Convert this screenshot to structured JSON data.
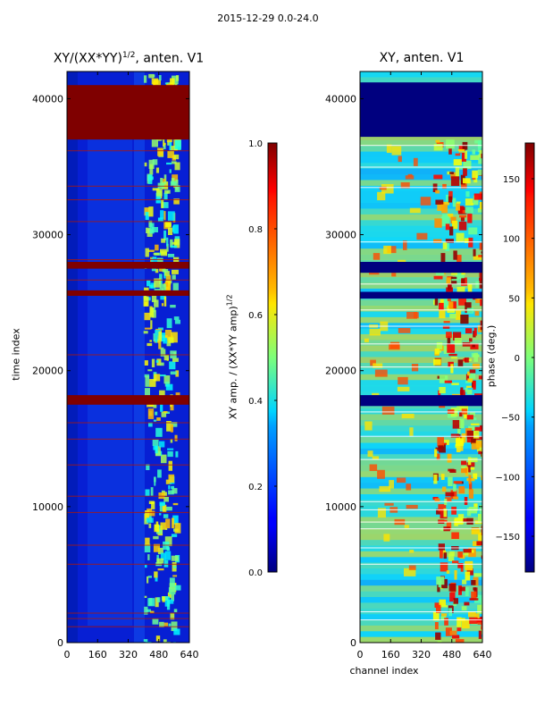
{
  "suptitle": "2015-12-29 0.0-24.0",
  "chart_data": [
    {
      "type": "heatmap",
      "title": "XY/(XX*YY)^1/2, anten. V1",
      "xlabel": "",
      "ylabel": "time index",
      "xlim": [
        0,
        640
      ],
      "ylim": [
        0,
        42000
      ],
      "xticks": [
        "0",
        "160",
        "320",
        "480",
        "640"
      ],
      "yticks": [
        "0",
        "10000",
        "20000",
        "30000",
        "40000"
      ],
      "saturated_time_bands": [
        [
          37000,
          41000
        ],
        [
          27500,
          28000
        ],
        [
          25500,
          25900
        ],
        [
          17500,
          18200
        ]
      ],
      "colorbar": {
        "label": "XY amp. / (XX*YY amp)^1/2",
        "range": [
          0.0,
          1.0
        ],
        "ticks": [
          "0.0",
          "0.2",
          "0.4",
          "0.6",
          "0.8",
          "1.0"
        ],
        "colormap": "jet"
      }
    },
    {
      "type": "heatmap",
      "title": "XY, anten. V1",
      "xlabel": "channel index",
      "ylabel": "",
      "xlim": [
        0,
        640
      ],
      "ylim": [
        0,
        42000
      ],
      "xticks": [
        "0",
        "160",
        "320",
        "480",
        "640"
      ],
      "yticks": [
        "0",
        "10000",
        "20000",
        "30000",
        "40000"
      ],
      "colorbar": {
        "label": "phase (deg.)",
        "range": [
          -180,
          180
        ],
        "ticks": [
          "−150",
          "−100",
          "−50",
          "0",
          "50",
          "100",
          "150"
        ],
        "colormap": "jet"
      }
    }
  ],
  "labels": {
    "left_title_main": "XY/(XX*YY)",
    "left_title_exp": "1/2",
    "left_title_rest": ", anten. V1",
    "right_title": "XY, anten. V1",
    "ylabel": "time index",
    "xlabel": "channel index",
    "cb1_main": "XY amp. / (XX*YY amp)",
    "cb1_exp": "1/2",
    "cb2_label": "phase (deg.)"
  }
}
